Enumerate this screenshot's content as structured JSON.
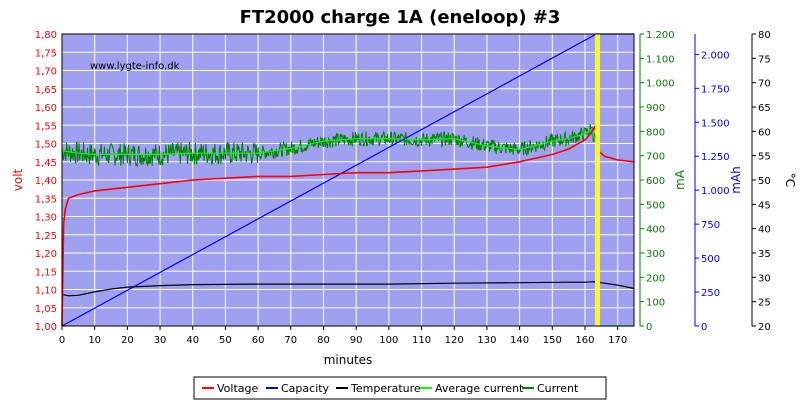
{
  "chart_data": {
    "type": "line",
    "title": "FT2000 charge 1A (eneloop) #3",
    "watermark": "www.lygte-info.dk",
    "xlabel": "minutes",
    "xlim": [
      0,
      175
    ],
    "xticks": [
      "0",
      "10",
      "20",
      "30",
      "40",
      "50",
      "60",
      "70",
      "80",
      "90",
      "100",
      "110",
      "120",
      "130",
      "140",
      "150",
      "160",
      "170"
    ],
    "axes": {
      "volt": {
        "label": "volt",
        "color": "#ff0000",
        "lim": [
          1.0,
          1.8
        ],
        "ticks": [
          "1,00",
          "1,05",
          "1,10",
          "1,15",
          "1,20",
          "1,25",
          "1,30",
          "1,35",
          "1,40",
          "1,45",
          "1,50",
          "1,55",
          "1,60",
          "1,65",
          "1,70",
          "1,75",
          "1,80"
        ]
      },
      "mA": {
        "label": "mA",
        "color": "#008000",
        "lim": [
          0,
          1200
        ],
        "ticks": [
          "0",
          "100",
          "200",
          "300",
          "400",
          "500",
          "600",
          "700",
          "800",
          "900",
          "1.000",
          "1.100",
          "1.200"
        ]
      },
      "mAh": {
        "label": "mAh",
        "color": "#0000ff",
        "lim": [
          0,
          2150
        ],
        "ticks": [
          "0",
          "250",
          "500",
          "750",
          "1.000",
          "1.250",
          "1.500",
          "1.750",
          "2.000"
        ]
      },
      "temp": {
        "label": "°C",
        "color": "#000000",
        "lim": [
          20,
          80
        ],
        "ticks": [
          "20",
          "25",
          "30",
          "35",
          "40",
          "45",
          "50",
          "55",
          "60",
          "65",
          "70",
          "75",
          "80"
        ]
      }
    },
    "grid": true,
    "legend_position": "bottom",
    "end_marker_x": 164,
    "series": [
      {
        "name": "Voltage",
        "axis": "volt",
        "color": "#ff0000",
        "x": [
          0,
          0.5,
          1,
          2,
          5,
          10,
          20,
          30,
          40,
          50,
          60,
          70,
          80,
          90,
          100,
          110,
          120,
          130,
          140,
          145,
          150,
          155,
          160,
          162,
          163,
          163.5,
          164,
          166,
          170,
          175
        ],
        "y": [
          1.0,
          1.28,
          1.32,
          1.35,
          1.36,
          1.37,
          1.38,
          1.39,
          1.4,
          1.405,
          1.41,
          1.41,
          1.415,
          1.42,
          1.42,
          1.425,
          1.43,
          1.435,
          1.45,
          1.46,
          1.47,
          1.485,
          1.51,
          1.53,
          1.545,
          1.53,
          1.48,
          1.465,
          1.455,
          1.45
        ]
      },
      {
        "name": "Capacity",
        "axis": "mAh",
        "color": "#0000ff",
        "x": [
          0,
          163.5,
          164,
          175
        ],
        "y": [
          0,
          2150,
          2150,
          2150
        ]
      },
      {
        "name": "Temperature",
        "axis": "temp",
        "color": "#000000",
        "x": [
          0,
          2,
          5,
          10,
          15,
          20,
          30,
          40,
          60,
          80,
          100,
          120,
          140,
          155,
          160,
          163,
          165,
          170,
          175
        ],
        "y": [
          26.5,
          26.2,
          26.3,
          27.0,
          27.6,
          28.0,
          28.3,
          28.5,
          28.6,
          28.6,
          28.6,
          28.8,
          28.9,
          29.0,
          29.0,
          29.1,
          28.9,
          28.4,
          27.7
        ]
      },
      {
        "name": "Average current",
        "axis": "mA",
        "color": "#00ff00",
        "x": [
          0,
          5,
          10,
          20,
          30,
          40,
          50,
          60,
          70,
          80,
          90,
          100,
          110,
          120,
          130,
          140,
          150,
          155,
          160,
          162,
          163,
          163.5,
          163.6,
          164,
          175
        ],
        "y": [
          720,
          710,
          705,
          705,
          705,
          710,
          710,
          710,
          730,
          760,
          770,
          770,
          765,
          770,
          740,
          725,
          760,
          770,
          790,
          810,
          770,
          740,
          0,
          0,
          0
        ]
      },
      {
        "name": "Current",
        "axis": "mA",
        "color": "#008000",
        "x": [
          0,
          5,
          10,
          20,
          30,
          40,
          50,
          60,
          70,
          80,
          90,
          100,
          110,
          120,
          130,
          140,
          150,
          155,
          160,
          162,
          163,
          163.5,
          163.6,
          164,
          175
        ],
        "y": [
          720,
          710,
          705,
          705,
          705,
          710,
          710,
          710,
          730,
          760,
          770,
          770,
          765,
          770,
          740,
          725,
          760,
          770,
          790,
          810,
          770,
          740,
          0,
          0,
          0
        ],
        "noise": 30
      }
    ]
  }
}
